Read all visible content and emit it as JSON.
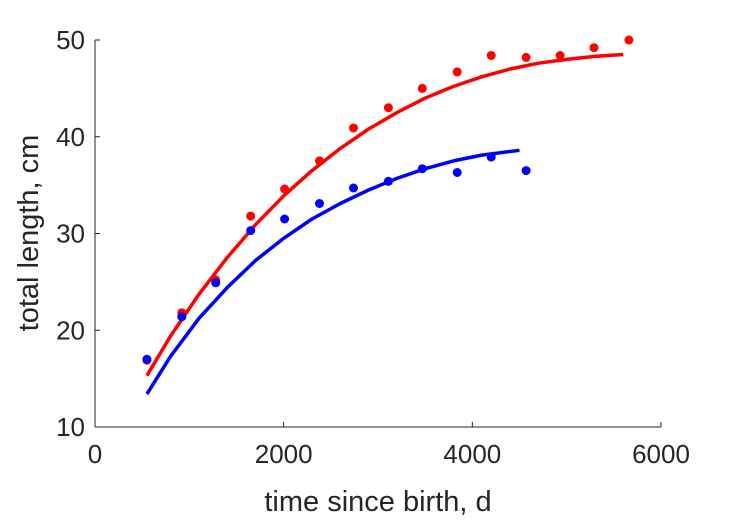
{
  "chart_data": {
    "type": "scatter",
    "title": "",
    "xlabel": "time since birth, d",
    "ylabel": "total length, cm",
    "xlim": [
      0,
      6000
    ],
    "ylim": [
      10,
      50
    ],
    "xticks": [
      0,
      2000,
      4000,
      6000
    ],
    "yticks": [
      10,
      20,
      30,
      40,
      50
    ],
    "grid": false,
    "legend": "none",
    "series": [
      {
        "color": "#ff0000",
        "points": [
          [
            550,
            16.9
          ],
          [
            920,
            21.8
          ],
          [
            1280,
            25.2
          ],
          [
            1650,
            31.8
          ],
          [
            2010,
            34.6
          ],
          [
            2380,
            37.5
          ],
          [
            2740,
            40.9
          ],
          [
            3110,
            43.0
          ],
          [
            3470,
            45.0
          ],
          [
            3840,
            46.7
          ],
          [
            4200,
            48.4
          ],
          [
            4570,
            48.2
          ],
          [
            4930,
            48.4
          ],
          [
            5290,
            49.2
          ],
          [
            5660,
            50.0
          ]
        ],
        "fit": [
          [
            550,
            15.3
          ],
          [
            800,
            19.4
          ],
          [
            1100,
            23.7
          ],
          [
            1400,
            27.5
          ],
          [
            1700,
            30.9
          ],
          [
            2000,
            33.9
          ],
          [
            2300,
            36.5
          ],
          [
            2600,
            38.8
          ],
          [
            2900,
            40.8
          ],
          [
            3200,
            42.5
          ],
          [
            3500,
            44.0
          ],
          [
            3800,
            45.2
          ],
          [
            4100,
            46.2
          ],
          [
            4400,
            47.0
          ],
          [
            4700,
            47.6
          ],
          [
            5000,
            48.0
          ],
          [
            5300,
            48.3
          ],
          [
            5600,
            48.5
          ]
        ]
      },
      {
        "color": "#0000ff",
        "points": [
          [
            550,
            17.0
          ],
          [
            920,
            21.4
          ],
          [
            1280,
            24.9
          ],
          [
            1650,
            30.3
          ],
          [
            2010,
            31.5
          ],
          [
            2380,
            33.1
          ],
          [
            2740,
            34.7
          ],
          [
            3110,
            35.4
          ],
          [
            3470,
            36.7
          ],
          [
            3840,
            36.3
          ],
          [
            4200,
            37.9
          ],
          [
            4570,
            36.5
          ]
        ],
        "fit": [
          [
            550,
            13.4
          ],
          [
            800,
            17.3
          ],
          [
            1100,
            21.2
          ],
          [
            1400,
            24.4
          ],
          [
            1700,
            27.2
          ],
          [
            2000,
            29.5
          ],
          [
            2300,
            31.5
          ],
          [
            2600,
            33.1
          ],
          [
            2900,
            34.5
          ],
          [
            3200,
            35.7
          ],
          [
            3500,
            36.7
          ],
          [
            3800,
            37.5
          ],
          [
            4100,
            38.1
          ],
          [
            4500,
            38.6
          ]
        ]
      }
    ]
  }
}
